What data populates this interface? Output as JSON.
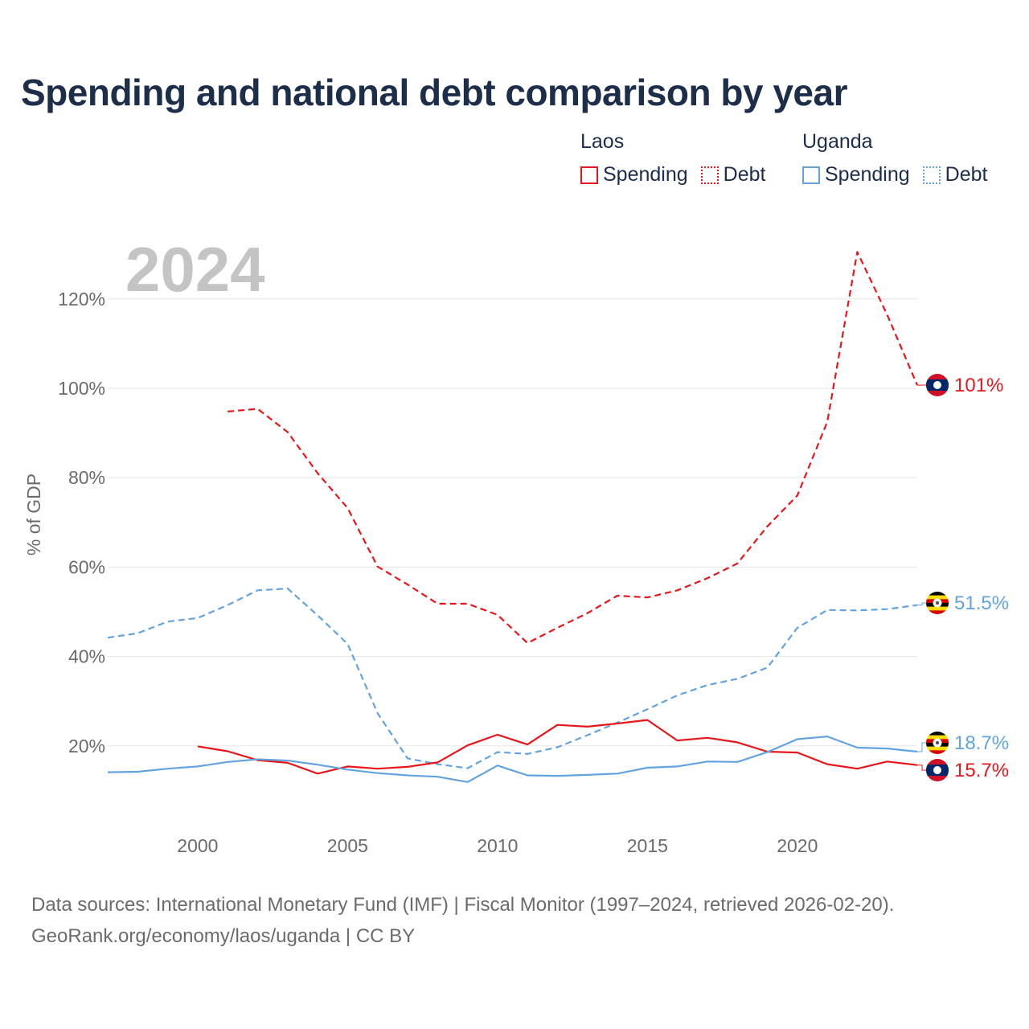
{
  "chart_data": {
    "type": "line",
    "title": "Spending and national debt comparison by year",
    "year_label": "2024",
    "ylabel": "% of GDP",
    "ylim": [
      0,
      130
    ],
    "xlim": [
      1997,
      2024
    ],
    "y_ticks": [
      {
        "value": 20,
        "label": "20%"
      },
      {
        "value": 40,
        "label": "40%"
      },
      {
        "value": 60,
        "label": "60%"
      },
      {
        "value": 80,
        "label": "80%"
      },
      {
        "value": 100,
        "label": "100%"
      },
      {
        "value": 120,
        "label": "120%"
      }
    ],
    "x_ticks": [
      {
        "value": 2000,
        "label": "2000"
      },
      {
        "value": 2005,
        "label": "2005"
      },
      {
        "value": 2010,
        "label": "2010"
      },
      {
        "value": 2015,
        "label": "2015"
      },
      {
        "value": 2020,
        "label": "2020"
      }
    ],
    "legend": {
      "groups": [
        {
          "name": "Laos",
          "items": [
            "Spending",
            "Debt"
          ]
        },
        {
          "name": "Uganda",
          "items": [
            "Spending",
            "Debt"
          ]
        }
      ]
    },
    "series": [
      {
        "name": "Laos Debt",
        "country": "Laos",
        "metric": "Debt",
        "color": "#e8161b",
        "dash": true,
        "end_label": "101%",
        "points": [
          [
            2001,
            94.8
          ],
          [
            2002,
            95.4
          ],
          [
            2003,
            90.2
          ],
          [
            2004,
            81.0
          ],
          [
            2005,
            73.2
          ],
          [
            2006,
            60.1
          ],
          [
            2007,
            56.1
          ],
          [
            2008,
            51.8
          ],
          [
            2009,
            51.8
          ],
          [
            2010,
            49.3
          ],
          [
            2011,
            43.0
          ],
          [
            2012,
            46.4
          ],
          [
            2013,
            49.7
          ],
          [
            2014,
            53.6
          ],
          [
            2015,
            53.2
          ],
          [
            2016,
            54.8
          ],
          [
            2017,
            57.5
          ],
          [
            2018,
            60.8
          ],
          [
            2019,
            69.1
          ],
          [
            2020,
            76.0
          ],
          [
            2021,
            92.5
          ],
          [
            2022,
            130.5
          ],
          [
            2023,
            116.4
          ],
          [
            2024,
            100.7
          ]
        ]
      },
      {
        "name": "Uganda Debt",
        "country": "Uganda",
        "metric": "Debt",
        "color": "#62a3e0",
        "dash": true,
        "end_label": "51.5%",
        "points": [
          [
            1997,
            44.2
          ],
          [
            1998,
            45.2
          ],
          [
            1999,
            47.8
          ],
          [
            2000,
            48.6
          ],
          [
            2001,
            51.5
          ],
          [
            2002,
            54.8
          ],
          [
            2003,
            55.2
          ],
          [
            2004,
            49.2
          ],
          [
            2005,
            42.8
          ],
          [
            2006,
            27.3
          ],
          [
            2007,
            17.2
          ],
          [
            2008,
            15.9
          ],
          [
            2009,
            15.0
          ],
          [
            2010,
            18.6
          ],
          [
            2011,
            18.2
          ],
          [
            2012,
            19.7
          ],
          [
            2013,
            22.4
          ],
          [
            2014,
            25.2
          ],
          [
            2015,
            28.2
          ],
          [
            2016,
            31.3
          ],
          [
            2017,
            33.6
          ],
          [
            2018,
            35.0
          ],
          [
            2019,
            37.5
          ],
          [
            2020,
            46.4
          ],
          [
            2021,
            50.4
          ],
          [
            2022,
            50.3
          ],
          [
            2023,
            50.6
          ],
          [
            2024,
            51.5
          ]
        ]
      },
      {
        "name": "Laos Spending",
        "country": "Laos",
        "metric": "Spending",
        "color": "#e8161b",
        "dash": false,
        "end_label": "15.7%",
        "points": [
          [
            2000,
            19.9
          ],
          [
            2001,
            18.8
          ],
          [
            2002,
            16.8
          ],
          [
            2003,
            16.2
          ],
          [
            2004,
            13.8
          ],
          [
            2005,
            15.4
          ],
          [
            2006,
            14.9
          ],
          [
            2007,
            15.3
          ],
          [
            2008,
            16.3
          ],
          [
            2009,
            20.1
          ],
          [
            2010,
            22.5
          ],
          [
            2011,
            20.3
          ],
          [
            2012,
            24.7
          ],
          [
            2013,
            24.3
          ],
          [
            2014,
            25.0
          ],
          [
            2015,
            25.8
          ],
          [
            2016,
            21.2
          ],
          [
            2017,
            21.8
          ],
          [
            2018,
            20.8
          ],
          [
            2019,
            18.7
          ],
          [
            2020,
            18.5
          ],
          [
            2021,
            15.9
          ],
          [
            2022,
            14.9
          ],
          [
            2023,
            16.5
          ],
          [
            2024,
            15.7
          ]
        ]
      },
      {
        "name": "Uganda Spending",
        "country": "Uganda",
        "metric": "Spending",
        "color": "#62a3e0",
        "dash": false,
        "end_label": "18.7%",
        "points": [
          [
            1997,
            14.1
          ],
          [
            1998,
            14.2
          ],
          [
            1999,
            14.9
          ],
          [
            2000,
            15.4
          ],
          [
            2001,
            16.4
          ],
          [
            2002,
            17.0
          ],
          [
            2003,
            16.7
          ],
          [
            2004,
            15.8
          ],
          [
            2005,
            14.7
          ],
          [
            2006,
            13.9
          ],
          [
            2007,
            13.4
          ],
          [
            2008,
            13.1
          ],
          [
            2009,
            11.9
          ],
          [
            2010,
            15.6
          ],
          [
            2011,
            13.4
          ],
          [
            2012,
            13.3
          ],
          [
            2013,
            13.5
          ],
          [
            2014,
            13.8
          ],
          [
            2015,
            15.1
          ],
          [
            2016,
            15.4
          ],
          [
            2017,
            16.5
          ],
          [
            2018,
            16.4
          ],
          [
            2019,
            18.6
          ],
          [
            2020,
            21.5
          ],
          [
            2021,
            22.1
          ],
          [
            2022,
            19.6
          ],
          [
            2023,
            19.4
          ],
          [
            2024,
            18.7
          ]
        ]
      }
    ]
  },
  "footer": {
    "sources": "Data sources: International Monetary Fund (IMF) | Fiscal Monitor (1997–2024, retrieved 2026-02-20).",
    "credit": "GeoRank.org/economy/laos/uganda | CC BY"
  }
}
